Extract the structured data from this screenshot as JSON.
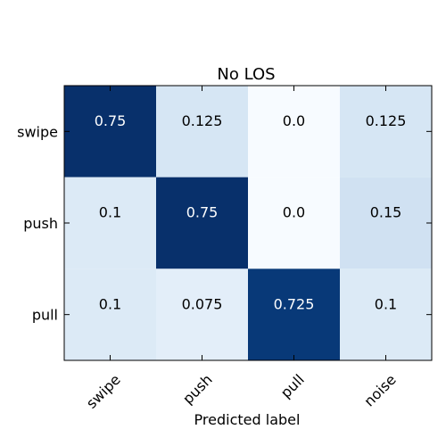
{
  "chart_data": {
    "type": "heatmap",
    "title": "No LOS",
    "xlabel": "Predicted label",
    "ylabel": "",
    "x_categories": [
      "swipe",
      "push",
      "pull",
      "noise"
    ],
    "y_categories": [
      "swipe",
      "push",
      "pull"
    ],
    "values": [
      [
        0.75,
        0.125,
        0.0,
        0.125
      ],
      [
        0.1,
        0.75,
        0.0,
        0.15
      ],
      [
        0.1,
        0.075,
        0.725,
        0.1
      ]
    ],
    "value_labels": [
      [
        "0.75",
        "0.125",
        "0.0",
        "0.125"
      ],
      [
        "0.1",
        "0.75",
        "0.0",
        "0.15"
      ],
      [
        "0.1",
        "0.075",
        "0.725",
        "0.1"
      ]
    ],
    "colormap": "Blues",
    "value_range": [
      0.0,
      0.75
    ],
    "grid": false,
    "legend": "none"
  },
  "colors": {
    "low": "#f7fbff",
    "high": "#08306b",
    "text_dark_cell": "#ffffff",
    "text_light_cell": "#000000"
  }
}
